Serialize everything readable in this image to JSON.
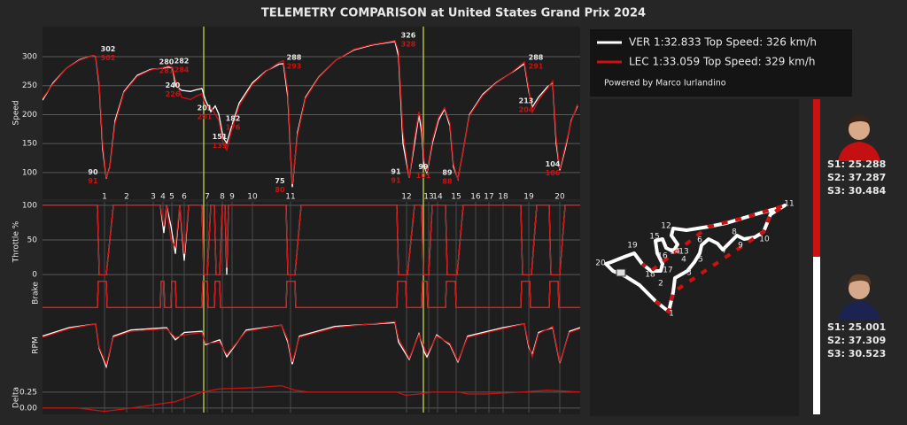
{
  "title": "TELEMETRY COMPARISON at United States Grand Prix 2024",
  "credit": "Powered by Marco Iurlandino",
  "chart_data": [
    {
      "type": "line",
      "ylabel": "Speed",
      "x": [
        0,
        12,
        27,
        42,
        57,
        60,
        64,
        68,
        72,
        76,
        82,
        92,
        107,
        122,
        135,
        142,
        147,
        150,
        157,
        167,
        174,
        180,
        184,
        190,
        195,
        199,
        204,
        208,
        214,
        222,
        237,
        252,
        267,
        272,
        277,
        282,
        288,
        297,
        312,
        332,
        352,
        372,
        392,
        398,
        402,
        407,
        414,
        420,
        425,
        428,
        431,
        434,
        440,
        447,
        454,
        460,
        464,
        469,
        474,
        482,
        497,
        512,
        527,
        537,
        544,
        549,
        553,
        560,
        570,
        576,
        580,
        584,
        590,
        597,
        604
      ],
      "xlim": [
        0,
        607
      ],
      "ylim": [
        54,
        352
      ],
      "yticks": [
        100,
        150,
        200,
        250,
        300
      ],
      "grid": true,
      "series": [
        {
          "name": "VER 1:32.833  Top Speed: 326 km/h",
          "color": "#ffffff",
          "values": [
            225,
            255,
            280,
            295,
            302,
            300,
            250,
            140,
            90,
            110,
            190,
            240,
            268,
            278,
            280,
            282,
            280,
            250,
            242,
            240,
            243,
            245,
            225,
            205,
            215,
            201,
            160,
            151,
            182,
            220,
            255,
            275,
            287,
            288,
            230,
            75,
            170,
            230,
            265,
            295,
            312,
            320,
            325,
            326,
            300,
            150,
            91,
            150,
            200,
            170,
            110,
            99,
            150,
            190,
            210,
            180,
            110,
            89,
            130,
            200,
            235,
            255,
            270,
            280,
            288,
            240,
            213,
            230,
            248,
            255,
            150,
            104,
            140,
            190,
            215
          ]
        },
        {
          "name": "LEC 1:33.059  Top Speed: 329 km/h",
          "color": "#cc1111",
          "values": [
            228,
            253,
            280,
            294,
            302,
            301,
            255,
            150,
            91,
            108,
            185,
            238,
            266,
            277,
            281,
            284,
            282,
            260,
            230,
            226,
            232,
            236,
            215,
            212,
            201,
            190,
            150,
            139,
            176,
            215,
            252,
            274,
            290,
            293,
            240,
            80,
            165,
            228,
            264,
            295,
            313,
            321,
            326,
            328,
            310,
            170,
            91,
            160,
            205,
            185,
            120,
            101,
            155,
            195,
            212,
            185,
            115,
            88,
            130,
            198,
            233,
            254,
            270,
            282,
            291,
            245,
            204,
            225,
            245,
            258,
            160,
            106,
            145,
            188,
            218
          ]
        }
      ],
      "annotations": [
        {
          "x": 74,
          "ver": 302,
          "lec": 302
        },
        {
          "x": 57,
          "ver": 90,
          "lec": 91
        },
        {
          "x": 140,
          "ver": 280,
          "lec": 281
        },
        {
          "x": 157,
          "ver": 282,
          "lec": 284
        },
        {
          "x": 147,
          "ver": 240,
          "lec": 226
        },
        {
          "x": 183,
          "ver": 201,
          "lec": 201
        },
        {
          "x": 215,
          "ver": 182,
          "lec": 176
        },
        {
          "x": 200,
          "ver": 151,
          "lec": 139
        },
        {
          "x": 284,
          "ver": 288,
          "lec": 293
        },
        {
          "x": 268,
          "ver": 75,
          "lec": 80
        },
        {
          "x": 399,
          "ver": 91,
          "lec": 91
        },
        {
          "x": 413,
          "ver": 326,
          "lec": 328
        },
        {
          "x": 430,
          "ver": 99,
          "lec": 101
        },
        {
          "x": 457,
          "ver": 89,
          "lec": 88
        },
        {
          "x": 546,
          "ver": 213,
          "lec": 204
        },
        {
          "x": 557,
          "ver": 288,
          "lec": 291
        },
        {
          "x": 576,
          "ver": 104,
          "lec": 106
        }
      ],
      "markers": [
        182,
        430
      ],
      "marker_color": "#c8d44a"
    },
    {
      "type": "line",
      "ylabel": "Throttle %",
      "x": [
        0,
        62,
        64,
        72,
        80,
        133,
        137,
        140,
        145,
        150,
        155,
        160,
        165,
        180,
        182,
        186,
        190,
        194,
        196,
        200,
        203,
        206,
        208,
        210,
        275,
        277,
        285,
        292,
        400,
        402,
        412,
        420,
        428,
        430,
        436,
        440,
        455,
        457,
        468,
        475,
        540,
        542,
        552,
        558,
        572,
        574,
        584,
        590,
        607
      ],
      "xlim": [
        0,
        607
      ],
      "ylim": [
        -10,
        105
      ],
      "yticks": [
        0,
        50,
        100
      ],
      "grid": true,
      "series": [
        {
          "color": "#ffffff",
          "values": [
            100,
            100,
            0,
            0,
            100,
            100,
            60,
            100,
            70,
            30,
            100,
            20,
            100,
            100,
            0,
            0,
            100,
            100,
            0,
            0,
            100,
            100,
            0,
            100,
            100,
            0,
            0,
            100,
            100,
            0,
            0,
            100,
            100,
            0,
            0,
            100,
            100,
            0,
            0,
            100,
            100,
            0,
            0,
            100,
            100,
            0,
            0,
            100,
            100
          ]
        },
        {
          "color": "#cc1111",
          "values": [
            100,
            100,
            0,
            0,
            100,
            100,
            70,
            100,
            50,
            40,
            100,
            30,
            100,
            100,
            0,
            0,
            100,
            100,
            0,
            0,
            100,
            100,
            10,
            100,
            100,
            0,
            0,
            100,
            100,
            0,
            0,
            100,
            100,
            0,
            0,
            100,
            100,
            0,
            0,
            100,
            100,
            0,
            0,
            100,
            100,
            0,
            0,
            100,
            100
          ]
        }
      ],
      "corners": {
        "x": [
          70,
          95,
          125,
          136,
          146,
          160,
          186,
          203,
          214,
          237,
          280,
          411,
          436,
          446,
          467,
          489,
          504,
          520,
          549,
          584
        ],
        "labels": [
          1,
          2,
          3,
          4,
          5,
          6,
          7,
          8,
          9,
          10,
          11,
          12,
          13,
          14,
          15,
          16,
          17,
          18,
          19,
          20
        ]
      }
    },
    {
      "type": "line",
      "ylabel": "Brake",
      "x": [
        0,
        62,
        63,
        72,
        73,
        133,
        134,
        137,
        138,
        145,
        146,
        150,
        151,
        180,
        181,
        186,
        187,
        194,
        195,
        200,
        201,
        275,
        276,
        285,
        286,
        400,
        401,
        410,
        411,
        428,
        429,
        434,
        435,
        455,
        456,
        466,
        467,
        540,
        541,
        550,
        551,
        572,
        573,
        582,
        583,
        607
      ],
      "xlim": [
        0,
        607
      ],
      "ylim": [
        -0.1,
        1.2
      ],
      "series": [
        {
          "color": "#ffffff",
          "values": [
            0,
            0,
            1,
            1,
            0,
            0,
            1,
            1,
            0,
            0,
            1,
            1,
            0,
            0,
            1,
            1,
            0,
            0,
            1,
            1,
            0,
            0,
            1,
            1,
            0,
            0,
            1,
            1,
            0,
            0,
            1,
            1,
            0,
            0,
            1,
            1,
            0,
            0,
            1,
            1,
            0,
            0,
            1,
            1,
            0,
            0
          ]
        },
        {
          "color": "#cc1111",
          "values": [
            0,
            0,
            1,
            1,
            0,
            0,
            1,
            1,
            0,
            0,
            1,
            1,
            0,
            0,
            1,
            1,
            0,
            0,
            1,
            1,
            0,
            0,
            1,
            1,
            0,
            0,
            1,
            1,
            0,
            0,
            1,
            1,
            0,
            0,
            1,
            1,
            0,
            0,
            1,
            1,
            0,
            0,
            1,
            1,
            0,
            0
          ]
        }
      ]
    },
    {
      "type": "line",
      "ylabel": "RPM",
      "x": [
        0,
        30,
        60,
        64,
        72,
        80,
        100,
        140,
        150,
        160,
        180,
        184,
        200,
        208,
        230,
        270,
        277,
        282,
        290,
        330,
        398,
        402,
        414,
        425,
        431,
        434,
        445,
        460,
        469,
        480,
        520,
        544,
        549,
        553,
        560,
        576,
        584,
        595,
        607
      ],
      "xlim": [
        0,
        607
      ],
      "ylim": [
        7000,
        12500
      ],
      "series": [
        {
          "color": "#ffffff",
          "values": [
            10500,
            11200,
            11500,
            9500,
            8000,
            10500,
            11000,
            11200,
            10200,
            10800,
            10900,
            9800,
            10200,
            8800,
            11000,
            11400,
            10000,
            8200,
            10500,
            11300,
            11600,
            10000,
            8600,
            10700,
            9200,
            8800,
            10600,
            9800,
            8400,
            10500,
            11200,
            11500,
            9600,
            9000,
            10800,
            11200,
            8300,
            10900,
            11200
          ]
        },
        {
          "color": "#cc1111",
          "values": [
            10400,
            11100,
            11500,
            9600,
            8200,
            10400,
            10900,
            11100,
            10400,
            10600,
            10800,
            9900,
            10000,
            9000,
            10900,
            11400,
            10200,
            8400,
            10400,
            11200,
            11700,
            10300,
            8700,
            10600,
            9600,
            9000,
            10500,
            9900,
            8500,
            10400,
            11100,
            11500,
            9800,
            8800,
            10700,
            11300,
            8400,
            10800,
            11100
          ]
        }
      ]
    },
    {
      "type": "line",
      "ylabel": "Delta",
      "x": [
        0,
        40,
        70,
        100,
        150,
        180,
        200,
        240,
        270,
        285,
        300,
        400,
        410,
        425,
        440,
        470,
        480,
        500,
        540,
        570,
        607
      ],
      "xlim": [
        0,
        607
      ],
      "ylim": [
        -0.07,
        0.4
      ],
      "yticks": [
        {
          "value": 0,
          "label": "0.00"
        },
        {
          "value": 0.25,
          "label": "0.25"
        }
      ],
      "grid": true,
      "series": [
        {
          "color": "#cc1111",
          "values": [
            0,
            0,
            -0.05,
            0,
            0.1,
            0.25,
            0.3,
            0.32,
            0.35,
            0.28,
            0.25,
            0.25,
            0.2,
            0.22,
            0.25,
            0.25,
            0.22,
            0.22,
            0.25,
            0.28,
            0.25
          ]
        }
      ]
    }
  ],
  "track_map": {
    "corner_labels": [
      1,
      2,
      3,
      4,
      5,
      6,
      7,
      8,
      9,
      10,
      11,
      12,
      13,
      14,
      15,
      16,
      17,
      18,
      19,
      20
    ]
  },
  "sectors": [
    {
      "color": "#cc1111",
      "times": [
        "S1: 25.288",
        "S2: 37.287",
        "S3: 30.484"
      ]
    },
    {
      "color": "#ffffff",
      "times": [
        "S1: 25.001",
        "S2: 37.309",
        "S3: 30.523"
      ]
    }
  ]
}
